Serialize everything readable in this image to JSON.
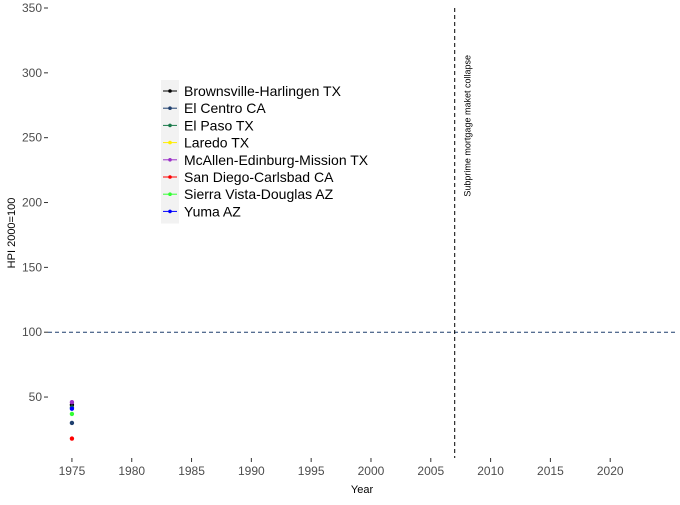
{
  "chart_data": {
    "type": "scatter",
    "title": "",
    "xlabel": "Year",
    "ylabel": "HPI 2000=100",
    "xlim": [
      1973,
      2025.5
    ],
    "ylim": [
      3,
      350
    ],
    "x_ticks": [
      1975,
      1980,
      1985,
      1990,
      1995,
      2000,
      2005,
      2010,
      2015,
      2020
    ],
    "y_ticks": [
      50,
      100,
      150,
      200,
      250,
      300,
      350
    ],
    "grid": false,
    "legend_position": "top-left",
    "series": [
      {
        "name": "Brownsville-Harlingen TX",
        "color": "#000000",
        "points": [
          [
            1975,
            44
          ]
        ]
      },
      {
        "name": "El Centro CA",
        "color": "#1f3f6e",
        "points": [
          [
            1975,
            30
          ]
        ]
      },
      {
        "name": "El Paso TX",
        "color": "#1a7a4a",
        "points": [
          [
            1975,
            42
          ]
        ]
      },
      {
        "name": "Laredo TX",
        "color": "#ffee00",
        "points": []
      },
      {
        "name": "McAllen-Edinburg-Mission TX",
        "color": "#9b30c8",
        "points": [
          [
            1975,
            46
          ]
        ]
      },
      {
        "name": "San Diego-Carlsbad CA",
        "color": "#ff0000",
        "points": [
          [
            1975,
            18
          ]
        ]
      },
      {
        "name": "Sierra Vista-Douglas AZ",
        "color": "#33ff33",
        "points": [
          [
            1975,
            37
          ]
        ]
      },
      {
        "name": "Yuma AZ",
        "color": "#0000ff",
        "points": [
          [
            1975,
            41
          ]
        ]
      }
    ],
    "reference_lines": [
      {
        "orientation": "horizontal",
        "value": 100,
        "style": "dashed",
        "color": "#1f3f6e"
      },
      {
        "orientation": "vertical",
        "value": 2007,
        "style": "dashed",
        "color": "#000000"
      }
    ],
    "annotations": [
      {
        "text": "Subprime mortgage maket collapse",
        "x": 2008,
        "rotation": -90
      }
    ]
  }
}
